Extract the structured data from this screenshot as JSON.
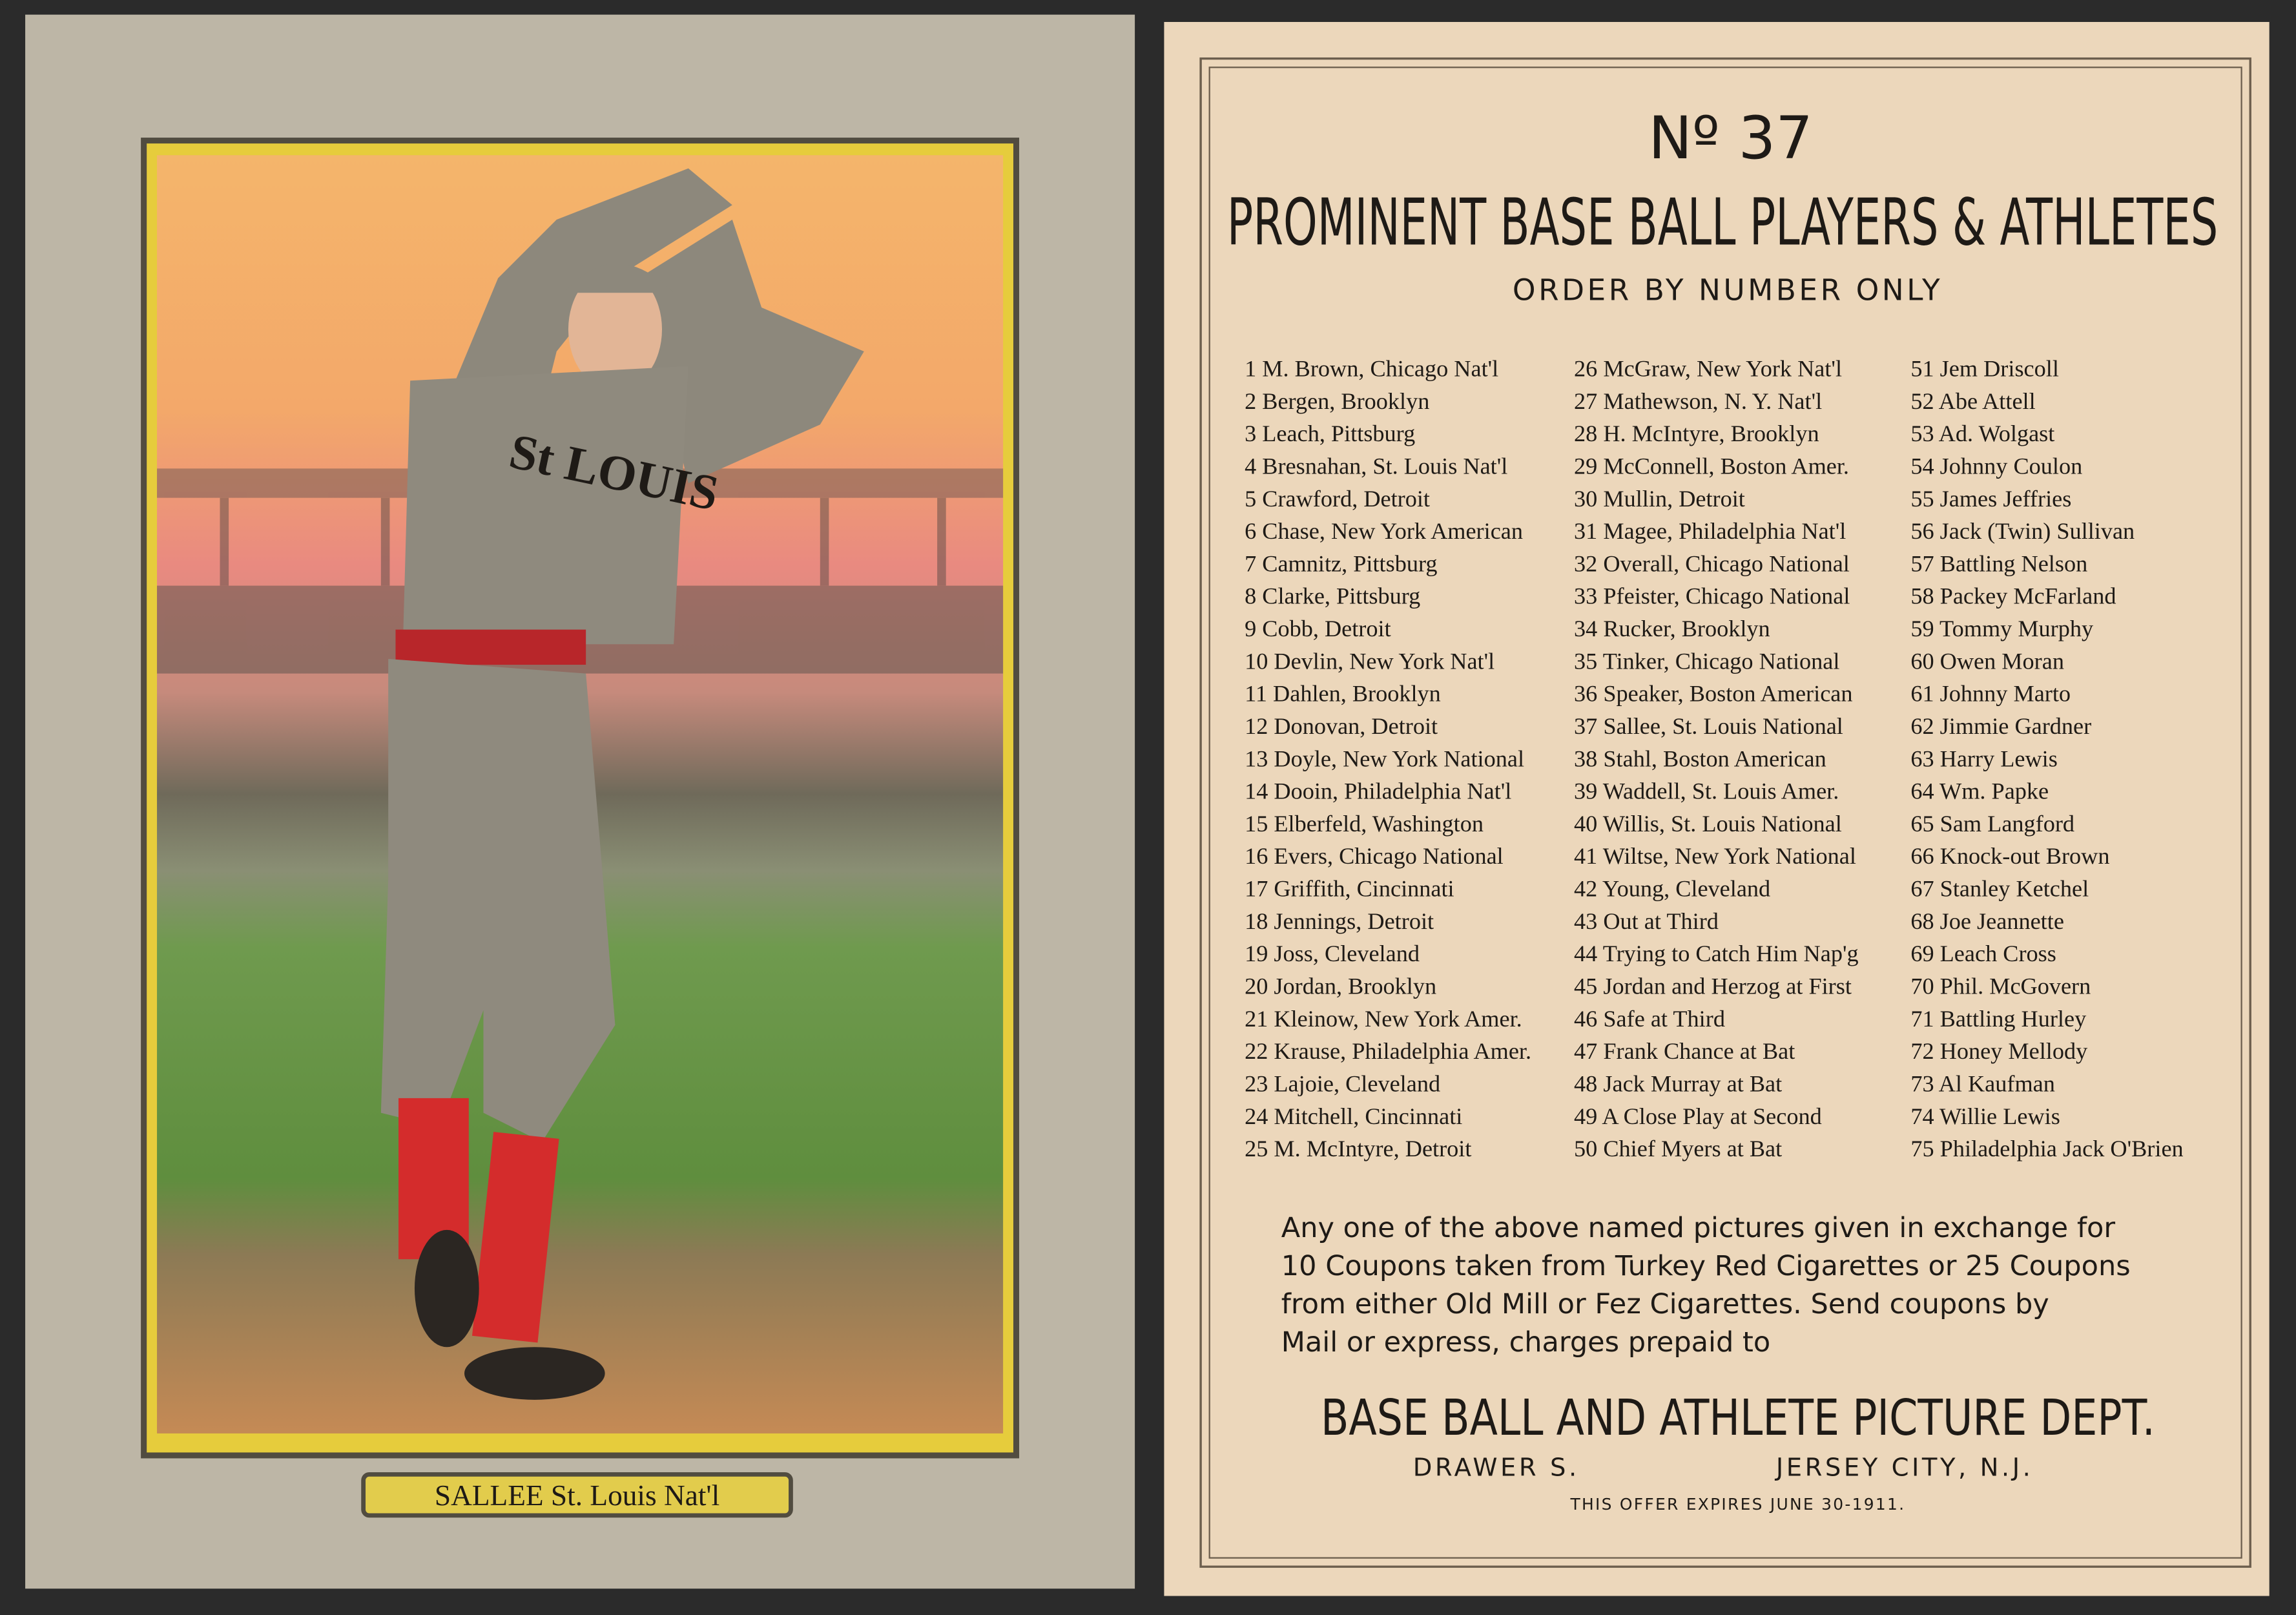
{
  "front": {
    "caption": "SALLEE St. Louis Nat'l"
  },
  "back": {
    "number": "Nº 37",
    "title": "PROMINENT BASE BALL PLAYERS & ATHLETES",
    "subtitle": "ORDER BY NUMBER ONLY",
    "columns": [
      [
        "1 M. Brown, Chicago Nat'l",
        "2 Bergen, Brooklyn",
        "3 Leach, Pittsburg",
        "4 Bresnahan, St. Louis Nat'l",
        "5 Crawford, Detroit",
        "6 Chase, New York American",
        "7 Camnitz, Pittsburg",
        "8 Clarke, Pittsburg",
        "9 Cobb, Detroit",
        "10 Devlin, New York Nat'l",
        "11 Dahlen, Brooklyn",
        "12 Donovan, Detroit",
        "13 Doyle, New York National",
        "14 Dooin, Philadelphia Nat'l",
        "15 Elberfeld, Washington",
        "16 Evers, Chicago National",
        "17 Griffith, Cincinnati",
        "18 Jennings, Detroit",
        "19 Joss, Cleveland",
        "20 Jordan, Brooklyn",
        "21 Kleinow, New York Amer.",
        "22 Krause, Philadelphia Amer.",
        "23 Lajoie, Cleveland",
        "24 Mitchell, Cincinnati",
        "25 M. McIntyre, Detroit"
      ],
      [
        "26 McGraw, New York Nat'l",
        "27 Mathewson, N. Y. Nat'l",
        "28 H. McIntyre, Brooklyn",
        "29 McConnell, Boston Amer.",
        "30 Mullin, Detroit",
        "31 Magee, Philadelphia Nat'l",
        "32 Overall, Chicago National",
        "33 Pfeister, Chicago National",
        "34 Rucker, Brooklyn",
        "35 Tinker, Chicago National",
        "36 Speaker, Boston American",
        "37 Sallee, St. Louis National",
        "38 Stahl, Boston American",
        "39 Waddell, St. Louis Amer.",
        "40 Willis, St. Louis National",
        "41 Wiltse, New York National",
        "42 Young, Cleveland",
        "43 Out at Third",
        "44 Trying to Catch Him Nap'g",
        "45 Jordan and Herzog at First",
        "46 Safe at Third",
        "47 Frank Chance at Bat",
        "48 Jack Murray at Bat",
        "49 A Close Play at Second",
        "50 Chief Myers at Bat"
      ],
      [
        "51 Jem Driscoll",
        "52 Abe Attell",
        "53 Ad. Wolgast",
        "54 Johnny Coulon",
        "55 James Jeffries",
        "56 Jack (Twin) Sullivan",
        "57 Battling Nelson",
        "58 Packey McFarland",
        "59 Tommy Murphy",
        "60 Owen Moran",
        "61 Johnny Marto",
        "62 Jimmie Gardner",
        "63 Harry Lewis",
        "64 Wm. Papke",
        "65 Sam Langford",
        "66 Knock-out Brown",
        "67 Stanley Ketchel",
        "68 Joe Jeannette",
        "69 Leach Cross",
        "70 Phil. McGovern",
        "71 Battling Hurley",
        "72 Honey Mellody",
        "73 Al Kaufman",
        "74 Willie Lewis",
        "75 Philadelphia Jack O'Brien"
      ]
    ],
    "offer_lines": [
      "Any one of the above named pictures given in exchange for",
      "10 Coupons taken from Turkey Red Cigarettes or 25 Coupons",
      "from either Old Mill or Fez Cigarettes. Send coupons by",
      "Mail or express, charges prepaid to"
    ],
    "dept": "BASE BALL AND ATHLETE PICTURE DEPT.",
    "drawer": "DRAWER S.",
    "city": "JERSEY CITY, N.J.",
    "expiry": "THIS OFFER EXPIRES JUNE 30-1911."
  }
}
